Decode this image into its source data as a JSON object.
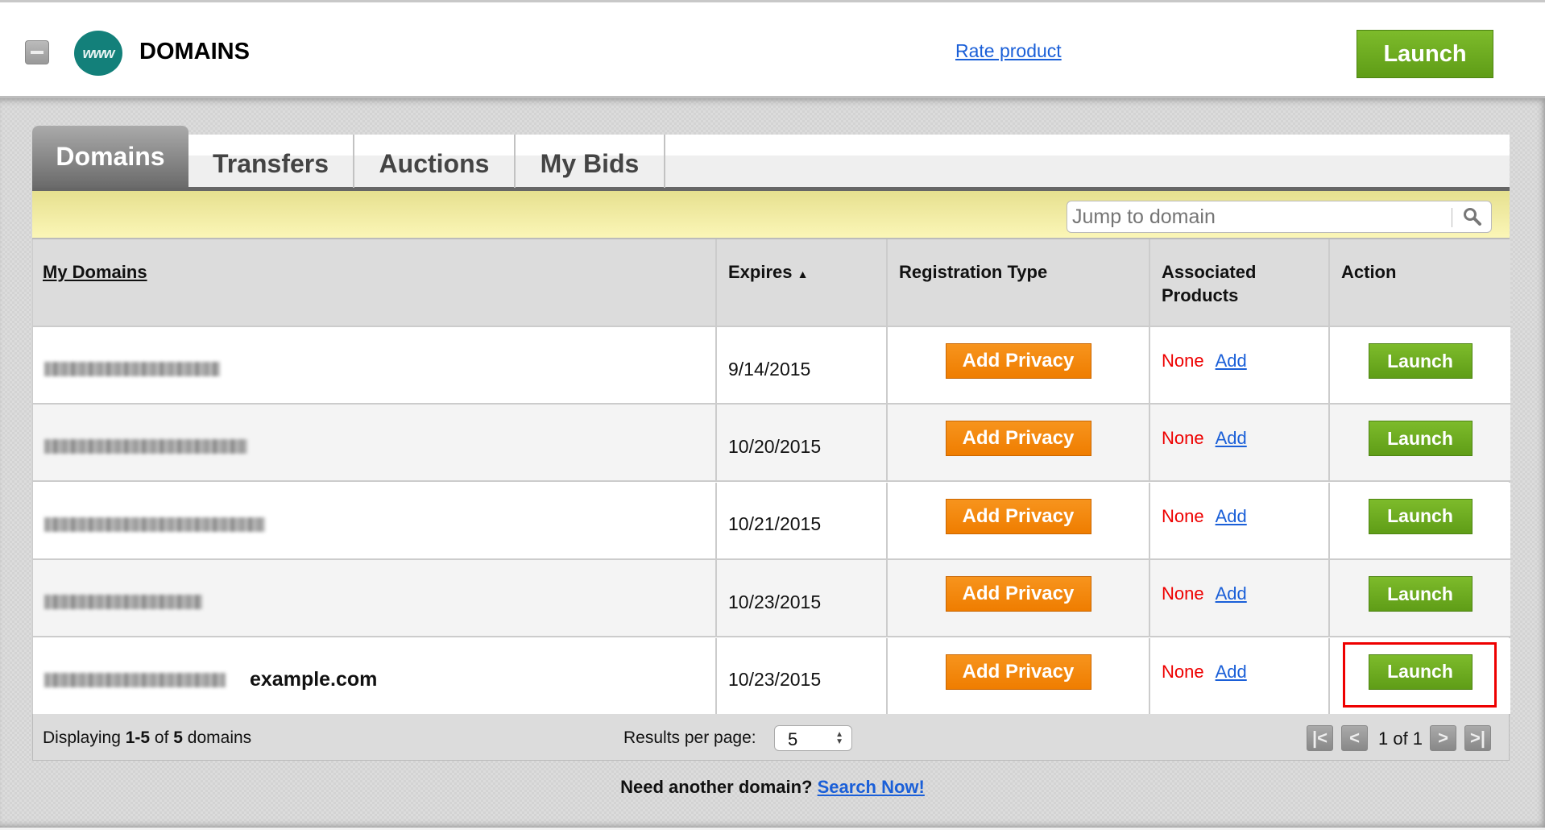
{
  "header": {
    "title": "DOMAINS",
    "logo_text": "www",
    "rate_label": "Rate product",
    "launch_label": "Launch"
  },
  "tabs": [
    {
      "label": "Domains",
      "active": true
    },
    {
      "label": "Transfers"
    },
    {
      "label": "Auctions"
    },
    {
      "label": "My Bids"
    }
  ],
  "search": {
    "placeholder": "Jump to domain"
  },
  "table": {
    "columns": [
      "My Domains",
      "Expires",
      "Registration Type",
      "Associated Products",
      "Action"
    ],
    "sort_indicator": "▲",
    "rows": [
      {
        "expires": "9/14/2015",
        "privacy": "Add Privacy",
        "products": "None",
        "add": "Add",
        "action": "Launch"
      },
      {
        "expires": "10/20/2015",
        "privacy": "Add Privacy",
        "products": "None",
        "add": "Add",
        "action": "Launch"
      },
      {
        "expires": "10/21/2015",
        "privacy": "Add Privacy",
        "products": "None",
        "add": "Add",
        "action": "Launch"
      },
      {
        "expires": "10/23/2015",
        "privacy": "Add Privacy",
        "products": "None",
        "add": "Add",
        "action": "Launch"
      },
      {
        "expires": "10/23/2015",
        "privacy": "Add Privacy",
        "products": "None",
        "add": "Add",
        "action": "Launch",
        "annotation": "example.com"
      }
    ]
  },
  "footer": {
    "displaying_prefix": "Displaying ",
    "range": "1-5",
    "of": " of ",
    "total": "5",
    "suffix": " domains",
    "results_label": "Results per page:",
    "results_value": "5",
    "page_info": "1 of 1"
  },
  "bottom": {
    "prompt": "Need another domain?",
    "link": "Search Now!"
  },
  "colors": {
    "launch": "#6aa81f",
    "privacy": "#f38a0f",
    "none": "#e00000",
    "link": "#1a5fd8",
    "highlight": "#e00000"
  }
}
